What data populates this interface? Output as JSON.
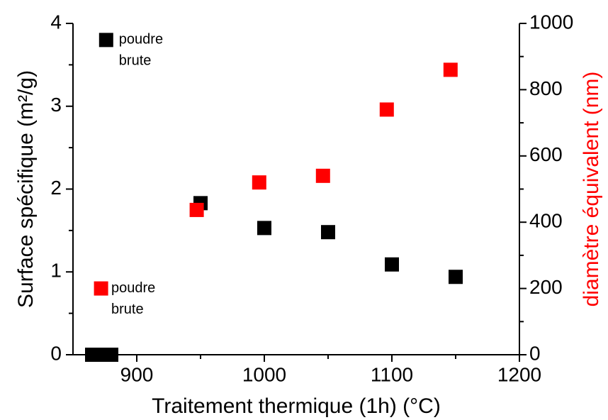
{
  "chart_data": {
    "type": "scatter",
    "x_label": "Traitement thermique (1h) (°C)",
    "y_label": "Surface spécifique (m²/g)",
    "y2_label": "diamètre équivalent (nm)",
    "xlim": [
      850,
      1200
    ],
    "xticks": [
      900,
      1000,
      1100,
      1200
    ],
    "xminorticks": [
      950,
      1050,
      1150
    ],
    "ylim": [
      0,
      4
    ],
    "yticks": [
      0,
      1,
      2,
      3,
      4
    ],
    "yminorticks": [
      0.5,
      1.5,
      2.5,
      3.5
    ],
    "y2lim": [
      0,
      1000
    ],
    "y2ticks": [
      0,
      200,
      400,
      600,
      800,
      1000
    ],
    "y2minorticks": [
      100,
      300,
      500,
      700,
      900
    ],
    "y2color": "#ff0000",
    "series": [
      {
        "color": "#000000",
        "x": [
          876,
          865,
          873,
          880,
          950,
          1000,
          1050,
          1100,
          1150
        ],
        "values": [
          3.8,
          0,
          0,
          0,
          1.83,
          1.53,
          1.48,
          1.09,
          0.94
        ]
      },
      {
        "color": "#ff0000",
        "axis": "y2",
        "x": [
          872,
          947,
          996,
          1046,
          1096,
          1146
        ],
        "values": [
          200,
          437,
          520,
          540,
          740,
          860
        ]
      }
    ],
    "annotations": [
      {
        "x": 886,
        "y": 3.8,
        "axis": "y",
        "lines": [
          "poudre",
          "brute"
        ]
      },
      {
        "x": 880,
        "y": 200,
        "axis": "y2",
        "lines": [
          "poudre",
          "brute"
        ]
      }
    ]
  }
}
